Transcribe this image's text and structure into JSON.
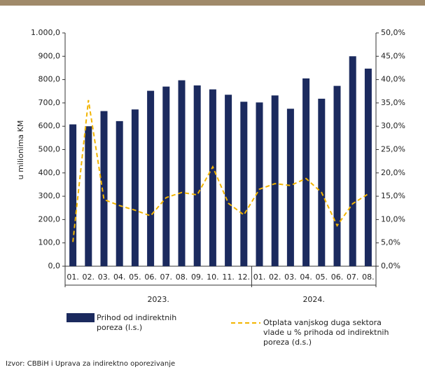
{
  "chart_data": {
    "type": "bar_line",
    "y_label": "u milionima KM",
    "categories": [
      "01.",
      "02.",
      "03.",
      "04.",
      "05.",
      "06.",
      "07.",
      "08.",
      "09.",
      "10.",
      "11.",
      "12.",
      "01.",
      "02.",
      "03.",
      "04.",
      "05.",
      "06.",
      "07.",
      "08."
    ],
    "year_labels": [
      "2023.",
      "2024."
    ],
    "series": [
      {
        "name": "Prihod od indirektnih poreza (l.s.)",
        "type": "bar",
        "color": "#1b2a5e",
        "values": [
          608,
          600,
          665,
          622,
          672,
          752,
          770,
          797,
          775,
          758,
          735,
          705,
          702,
          732,
          675,
          805,
          718,
          773,
          900,
          847
        ]
      },
      {
        "name": "Otplata vanjskog duga sektora vlade u % prihoda od indirektnih poreza (d.s.)",
        "type": "line",
        "axis": "y2",
        "color": "#f2b400",
        "values": [
          5.2,
          35.6,
          14.3,
          13,
          12,
          10.8,
          14.7,
          15.8,
          15.3,
          21.3,
          13.5,
          11,
          16.5,
          17.7,
          17.3,
          18.8,
          15.8,
          8.7,
          13.4,
          15.5
        ]
      }
    ],
    "ylim": [
      0,
      1000
    ],
    "yticks": [
      {
        "value": 0,
        "label": "0,0"
      },
      {
        "value": 100,
        "label": "100,0"
      },
      {
        "value": 200,
        "label": "200,0"
      },
      {
        "value": 300,
        "label": "300,0"
      },
      {
        "value": 400,
        "label": "400,0"
      },
      {
        "value": 500,
        "label": "500,0"
      },
      {
        "value": 600,
        "label": "600,0"
      },
      {
        "value": 700,
        "label": "700,0"
      },
      {
        "value": 800,
        "label": "800,0"
      },
      {
        "value": 900,
        "label": "900,0"
      },
      {
        "value": 1000,
        "label": "1.000,0"
      }
    ],
    "y2lim": [
      0,
      50
    ],
    "y2ticks": [
      {
        "value": 0,
        "label": "0,0%"
      },
      {
        "value": 5,
        "label": "5,0%"
      },
      {
        "value": 10,
        "label": "10,0%"
      },
      {
        "value": 15,
        "label": "15,0%"
      },
      {
        "value": 20,
        "label": "20,0%"
      },
      {
        "value": 25,
        "label": "25,0%"
      },
      {
        "value": 30,
        "label": "30,0%"
      },
      {
        "value": 35,
        "label": "35,0%"
      },
      {
        "value": 40,
        "label": "40,0%"
      },
      {
        "value": 45,
        "label": "45,0%"
      },
      {
        "value": 50,
        "label": "50,0%"
      }
    ],
    "source": "Izvor: CBBiH i Uprava za indirektno oporezivanje"
  }
}
